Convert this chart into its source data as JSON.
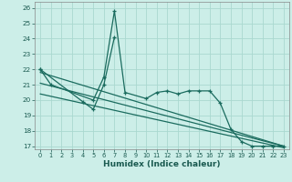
{
  "xlabel": "Humidex (Indice chaleur)",
  "bg_color": "#cceee8",
  "grid_color": "#aad8d0",
  "line_color": "#1a6b5e",
  "xlim": [
    -0.5,
    23.5
  ],
  "ylim": [
    16.8,
    26.4
  ],
  "yticks": [
    17,
    18,
    19,
    20,
    21,
    22,
    23,
    24,
    25,
    26
  ],
  "xticks": [
    0,
    1,
    2,
    3,
    4,
    5,
    6,
    7,
    8,
    9,
    10,
    11,
    12,
    13,
    14,
    15,
    16,
    17,
    18,
    19,
    20,
    21,
    22,
    23
  ],
  "curve1_x": [
    0,
    1,
    5,
    6,
    7,
    8,
    10,
    11,
    12,
    13,
    14,
    15,
    16,
    17,
    18,
    19,
    20,
    21,
    22,
    23
  ],
  "curve1_y": [
    22.0,
    21.0,
    20.0,
    21.5,
    25.8,
    20.5,
    20.1,
    20.5,
    20.6,
    20.4,
    20.6,
    20.6,
    20.6,
    19.8,
    18.1,
    17.3,
    17.0,
    17.0,
    17.0,
    17.0
  ],
  "curve2_x": [
    0,
    4,
    5,
    6,
    7
  ],
  "curve2_y": [
    22.0,
    19.9,
    19.4,
    21.0,
    24.1
  ],
  "trend1_x": [
    0,
    23
  ],
  "trend1_y": [
    21.8,
    17.0
  ],
  "trend2_x": [
    0,
    23
  ],
  "trend2_y": [
    21.1,
    17.0
  ],
  "trend3_x": [
    0,
    23
  ],
  "trend3_y": [
    20.4,
    16.9
  ]
}
